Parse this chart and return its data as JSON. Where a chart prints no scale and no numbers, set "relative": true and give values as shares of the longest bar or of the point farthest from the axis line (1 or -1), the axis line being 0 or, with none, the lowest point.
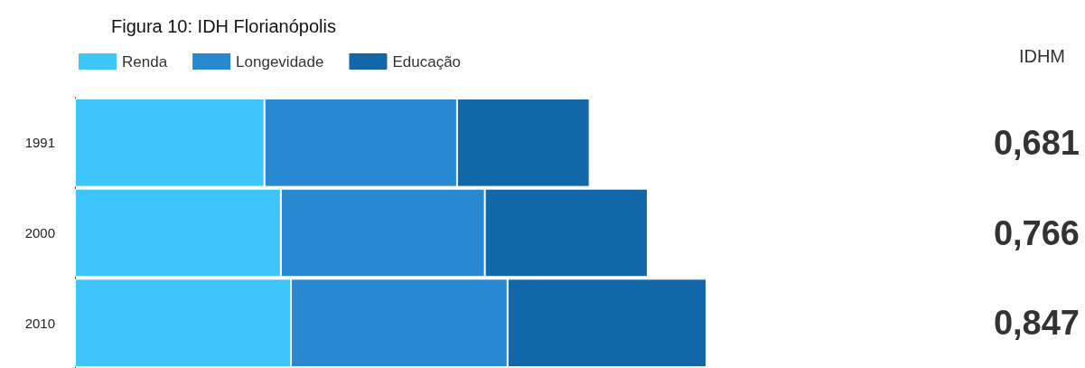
{
  "chart_data": {
    "type": "bar",
    "orientation": "horizontal",
    "stacked": true,
    "relative": true,
    "title": "Figura 10: IDH Florianópolis",
    "categories": [
      "1991",
      "2000",
      "2010"
    ],
    "series": [
      {
        "name": "Renda",
        "color": "#3ec6fc",
        "values": [
          0.3,
          0.326,
          0.342
        ]
      },
      {
        "name": "Longevidade",
        "color": "#2889d0",
        "values": [
          0.305,
          0.323,
          0.343
        ]
      },
      {
        "name": "Educação",
        "color": "#1167a8",
        "values": [
          0.21,
          0.258,
          0.315
        ]
      }
    ],
    "annotations": [
      "IDHM",
      "0,681",
      "0,766",
      "0,847"
    ],
    "legend": "top left"
  }
}
